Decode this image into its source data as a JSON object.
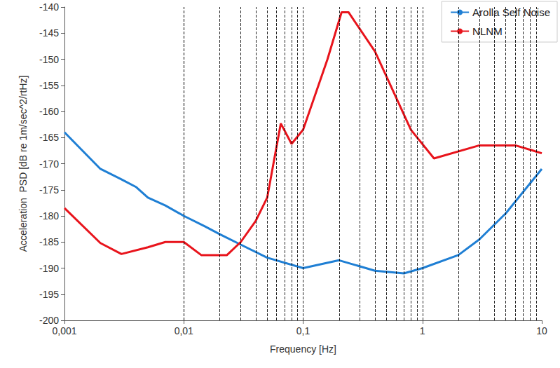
{
  "chart_data": {
    "type": "line",
    "x_label": "Frequency [Hz]",
    "y_label": "Acceleration  PSD [dB re 1m/sec^2/rtHz]",
    "log": "x",
    "grid": true,
    "legend": "upper right",
    "xlim": [
      0.001,
      10
    ],
    "ylim": [
      -200,
      -140
    ],
    "xticks": [
      {
        "value": 0.001,
        "label": "0,001"
      },
      {
        "value": 0.01,
        "label": "0,01"
      },
      {
        "value": 0.1,
        "label": "0,1"
      },
      1,
      10
    ],
    "yticks": [
      -200,
      -195,
      -190,
      -185,
      -180,
      -175,
      -170,
      -165,
      -160,
      -155,
      -150,
      -145,
      -140
    ],
    "series": [
      {
        "name": "Arolla Self Noise",
        "color": "#1f7fd4",
        "x": [
          0.001,
          0.002,
          0.003,
          0.004,
          0.005,
          0.007,
          0.01,
          0.015,
          0.02,
          0.03,
          0.05,
          0.1,
          0.2,
          0.4,
          0.7,
          1,
          2,
          3,
          5,
          10
        ],
        "values": [
          -164,
          -171,
          -173,
          -174.5,
          -176.5,
          -178,
          -180,
          -182,
          -183.5,
          -185.5,
          -188,
          -190,
          -188.5,
          -190.5,
          -191,
          -190,
          -187.5,
          -184.5,
          -179.5,
          -171
        ]
      },
      {
        "name": "NLNM",
        "color": "#e8141c",
        "x": [
          0.001,
          0.002,
          0.003,
          0.005,
          0.007,
          0.01,
          0.014,
          0.023,
          0.03,
          0.04,
          0.05,
          0.065,
          0.08,
          0.1,
          0.16,
          0.21,
          0.24,
          0.4,
          0.8,
          1.25,
          3,
          6,
          10
        ],
        "values": [
          -178.5,
          -185.2,
          -187.3,
          -186,
          -185,
          -185,
          -187.5,
          -187.5,
          -185,
          -181,
          -176.5,
          -162.3,
          -166.2,
          -163.5,
          -150,
          -141,
          -141,
          -148.5,
          -163.5,
          -169,
          -166.5,
          -166.5,
          -168
        ]
      }
    ]
  }
}
